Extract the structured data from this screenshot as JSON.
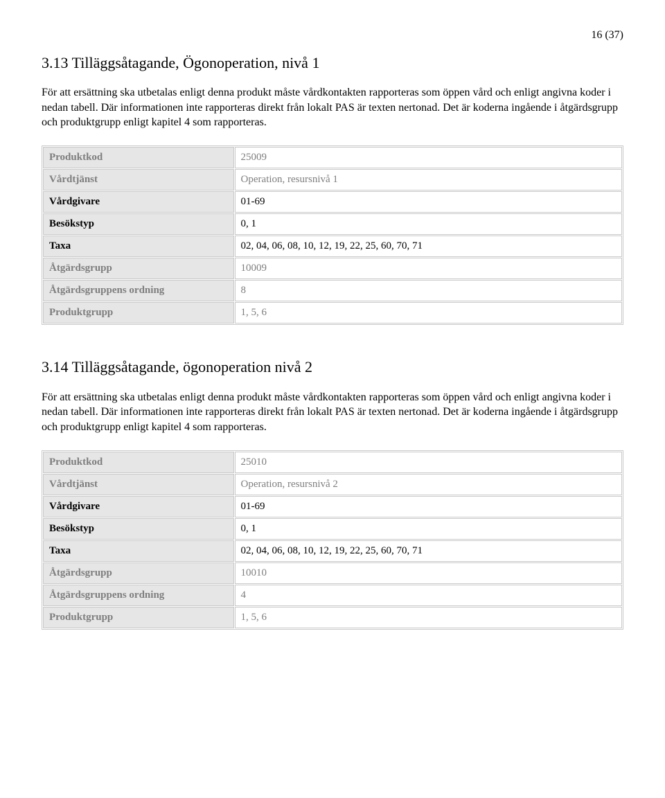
{
  "page_number": "16 (37)",
  "section1": {
    "title": "3.13 Tilläggsåtagande, Ögonoperation, nivå 1",
    "paragraph": "För att ersättning ska utbetalas enligt denna produkt måste vårdkontakten rapporteras som öppen vård och enligt angivna koder i nedan tabell. Där informationen inte rapporteras direkt från lokalt PAS är texten nertonad. Det är koderna ingående i åtgärdsgrupp och produktgrupp enligt kapitel 4 som rapporteras.",
    "rows": [
      {
        "key": "Produktkod",
        "val": "25009",
        "dim": true
      },
      {
        "key": "Vårdtjänst",
        "val": "Operation, resursnivå 1",
        "dim": true
      },
      {
        "key": "Vårdgivare",
        "val": "01-69",
        "dim": false
      },
      {
        "key": "Besökstyp",
        "val": "0, 1",
        "dim": false
      },
      {
        "key": "Taxa",
        "val": "02, 04, 06, 08, 10, 12, 19, 22, 25, 60, 70, 71",
        "dim": false
      },
      {
        "key": "Åtgärdsgrupp",
        "val": "10009",
        "dim": true
      },
      {
        "key": "Åtgärdsgruppens ordning",
        "val": "8",
        "dim": true
      },
      {
        "key": "Produktgrupp",
        "val": "1, 5, 6",
        "dim": true
      }
    ]
  },
  "section2": {
    "title": "3.14 Tilläggsåtagande, ögonoperation nivå 2",
    "paragraph": "För att ersättning ska utbetalas enligt denna produkt måste vårdkontakten rapporteras som öppen vård och enligt angivna koder i nedan tabell. Där informationen inte rapporteras direkt från lokalt PAS är texten nertonad. Det är koderna ingående i åtgärdsgrupp och produktgrupp enligt kapitel 4 som rapporteras.",
    "rows": [
      {
        "key": "Produktkod",
        "val": "25010",
        "dim": true
      },
      {
        "key": "Vårdtjänst",
        "val": "Operation, resursnivå 2",
        "dim": true
      },
      {
        "key": "Vårdgivare",
        "val": "01-69",
        "dim": false
      },
      {
        "key": "Besökstyp",
        "val": "0, 1",
        "dim": false
      },
      {
        "key": "Taxa",
        "val": "02, 04, 06, 08, 10, 12, 19, 22, 25, 60, 70, 71",
        "dim": false
      },
      {
        "key": "Åtgärdsgrupp",
        "val": "10010",
        "dim": true
      },
      {
        "key": "Åtgärdsgruppens ordning",
        "val": "4",
        "dim": true
      },
      {
        "key": "Produktgrupp",
        "val": "1, 5, 6",
        "dim": true
      }
    ]
  }
}
